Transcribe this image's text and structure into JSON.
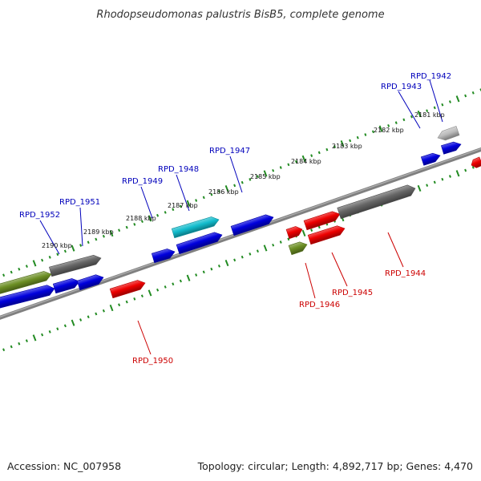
{
  "title": "Rhodopseudomonas palustris BisB5, complete genome",
  "footer": {
    "accession": "Accession: NC_007958",
    "topology": "Topology: circular; Length: 4,892,717 bp; Genes: 4,470"
  },
  "colors": {
    "blue": "#0000dd",
    "red": "#ee0000",
    "olive": "#6b8e23",
    "gray": "#666666",
    "cyan": "#11bbcc",
    "silver": "#bbbbbb",
    "label_top": "#0000bb",
    "label_bottom": "#cc0000",
    "ruler": "#228b22",
    "backbone": "#808080"
  },
  "scale_labels": [
    "2181 kbp",
    "2182 kbp",
    "2183 kbp",
    "2184 kbp",
    "2185 kbp",
    "2186 kbp",
    "2187 kbp",
    "2188 kbp",
    "2189 kbp",
    "2190 kbp"
  ],
  "top_labels": [
    "RPD_1942",
    "RPD_1943",
    "RPD_1947",
    "RPD_1948",
    "RPD_1949",
    "RPD_1951",
    "RPD_1952"
  ],
  "bottom_labels": [
    "RPD_1944",
    "RPD_1945",
    "RPD_1946",
    "RPD_1950"
  ],
  "genes": [
    {
      "color": "silver"
    },
    {
      "color": "blue"
    },
    {
      "color": "blue"
    },
    {
      "color": "red"
    },
    {
      "color": "blue"
    },
    {
      "color": "cyan"
    },
    {
      "color": "blue"
    },
    {
      "color": "blue"
    },
    {
      "color": "gray"
    },
    {
      "color": "olive"
    },
    {
      "color": "blue"
    },
    {
      "color": "blue"
    },
    {
      "color": "blue"
    },
    {
      "color": "red"
    },
    {
      "color": "red"
    },
    {
      "color": "red"
    },
    {
      "color": "gray"
    },
    {
      "color": "olive"
    },
    {
      "color": "red"
    }
  ]
}
